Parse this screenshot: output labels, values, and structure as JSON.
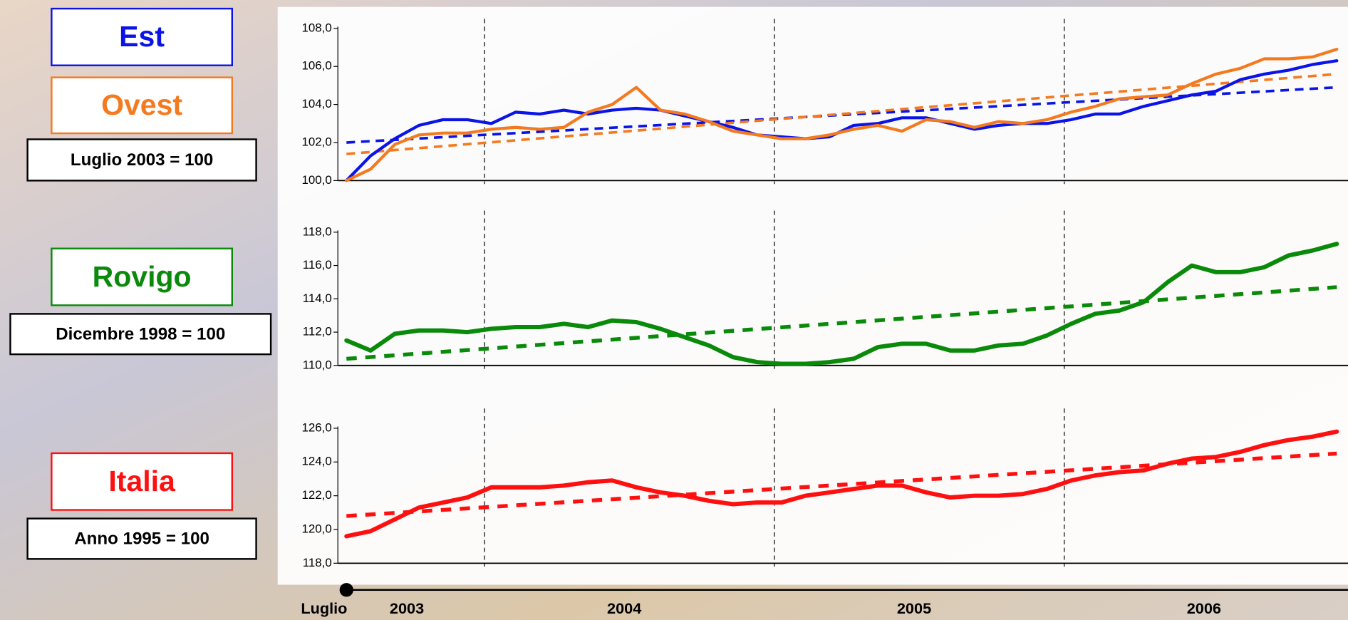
{
  "chart_data": [
    {
      "type": "line",
      "base": "Luglio 2003 = 100",
      "ylim": [
        100,
        108
      ],
      "yticks": [
        {
          "value": 100,
          "label": "100,0"
        },
        {
          "value": 102,
          "label": "102,0"
        },
        {
          "value": 104,
          "label": "104,0"
        },
        {
          "value": 106,
          "label": "106,0"
        },
        {
          "value": 108,
          "label": "108,0"
        }
      ],
      "series": [
        {
          "name": "Est",
          "color": "#0a14e6",
          "trend": [
            102.0,
            104.9
          ],
          "values": [
            100.0,
            101.3,
            102.2,
            102.9,
            103.2,
            103.2,
            103.0,
            103.6,
            103.5,
            103.7,
            103.5,
            103.7,
            103.8,
            103.7,
            103.4,
            103.1,
            102.8,
            102.4,
            102.3,
            102.2,
            102.3,
            102.9,
            103.0,
            103.3,
            103.3,
            103.0,
            102.7,
            102.9,
            103.0,
            103.0,
            103.2,
            103.5,
            103.5,
            103.9,
            104.2,
            104.5,
            104.7,
            105.3,
            105.6,
            105.8,
            106.1,
            106.3
          ]
        },
        {
          "name": "Ovest",
          "color": "#f47a20",
          "trend": [
            101.4,
            105.6
          ],
          "values": [
            100.0,
            100.6,
            101.9,
            102.4,
            102.5,
            102.5,
            102.7,
            102.8,
            102.7,
            102.8,
            103.6,
            104.0,
            104.9,
            103.7,
            103.5,
            103.1,
            102.6,
            102.4,
            102.2,
            102.2,
            102.4,
            102.7,
            102.9,
            102.6,
            103.2,
            103.1,
            102.8,
            103.1,
            103.0,
            103.2,
            103.6,
            103.9,
            104.3,
            104.4,
            104.5,
            105.1,
            105.6,
            105.9,
            106.4,
            106.4,
            106.5,
            106.9
          ]
        }
      ]
    },
    {
      "type": "line",
      "base": "Dicembre 1998 = 100",
      "ylim": [
        110,
        118
      ],
      "yticks": [
        {
          "value": 110,
          "label": "110,0"
        },
        {
          "value": 112,
          "label": "112,0"
        },
        {
          "value": 114,
          "label": "114,0"
        },
        {
          "value": 116,
          "label": "116,0"
        },
        {
          "value": 118,
          "label": "118,0"
        }
      ],
      "series": [
        {
          "name": "Rovigo",
          "color": "#0a8a0a",
          "trend": [
            110.4,
            114.7
          ],
          "values": [
            111.5,
            110.9,
            111.9,
            112.1,
            112.1,
            112.0,
            112.2,
            112.3,
            112.3,
            112.5,
            112.3,
            112.7,
            112.6,
            112.2,
            111.7,
            111.2,
            110.5,
            110.2,
            110.1,
            110.1,
            110.2,
            110.4,
            111.1,
            111.3,
            111.3,
            110.9,
            110.9,
            111.2,
            111.3,
            111.8,
            112.5,
            113.1,
            113.3,
            113.8,
            115.0,
            116.0,
            115.6,
            115.6,
            115.9,
            116.6,
            116.9,
            117.3
          ]
        }
      ]
    },
    {
      "type": "line",
      "base": "Anno 1995 = 100",
      "ylim": [
        118,
        126
      ],
      "yticks": [
        {
          "value": 118,
          "label": "118,0"
        },
        {
          "value": 120,
          "label": "120,0"
        },
        {
          "value": 122,
          "label": "122,0"
        },
        {
          "value": 124,
          "label": "124,0"
        },
        {
          "value": 126,
          "label": "126,0"
        }
      ],
      "series": [
        {
          "name": "Italia",
          "color": "#ff1010",
          "trend": [
            120.8,
            124.5
          ],
          "values": [
            119.6,
            119.9,
            120.6,
            121.3,
            121.6,
            121.9,
            122.5,
            122.5,
            122.5,
            122.6,
            122.8,
            122.9,
            122.5,
            122.2,
            122.0,
            121.7,
            121.5,
            121.6,
            121.6,
            122.0,
            122.2,
            122.4,
            122.6,
            122.6,
            122.2,
            121.9,
            122.0,
            122.0,
            122.1,
            122.4,
            122.9,
            123.2,
            123.4,
            123.5,
            123.9,
            124.2,
            124.3,
            124.6,
            125.0,
            125.3,
            125.5,
            125.8
          ]
        }
      ]
    }
  ],
  "x_axis": {
    "labels": [
      "Luglio",
      "2003",
      "2004",
      "2005",
      "2006"
    ]
  }
}
